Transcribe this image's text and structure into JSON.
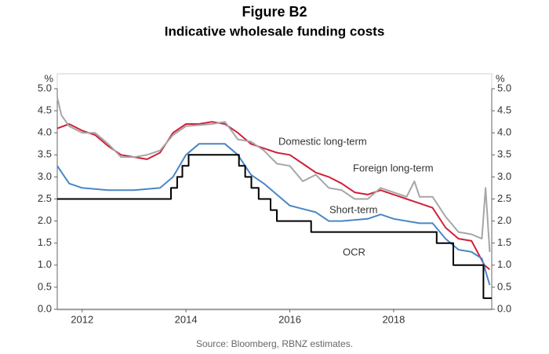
{
  "chart_data": {
    "type": "line",
    "title": "Figure B2",
    "subtitle": "Indicative wholesale funding costs",
    "source": "Source: Bloomberg, RBNZ estimates.",
    "y_label": "%",
    "y2_label": "%",
    "xlim": [
      2011.52,
      2019.89
    ],
    "xticks": [
      2012,
      2014,
      2016,
      2018
    ],
    "ylim": [
      0,
      5
    ],
    "y2lim": [
      0,
      5
    ],
    "yticks": [
      {
        "value": 0,
        "label": "0.0"
      },
      0.5,
      {
        "value": 1,
        "label": "1.0"
      },
      1.5,
      {
        "value": 2,
        "label": "2.0"
      },
      2.5,
      {
        "value": 3,
        "label": "3.0"
      },
      3.5,
      {
        "value": 4,
        "label": "4.0"
      },
      4.5,
      {
        "value": 5,
        "label": "5.0"
      }
    ],
    "y2ticks": [
      {
        "value": 0,
        "label": "0.0"
      },
      0.5,
      {
        "value": 1,
        "label": "1.0"
      },
      1.5,
      {
        "value": 2,
        "label": "2.0"
      },
      2.5,
      {
        "value": 3,
        "label": "3.0"
      },
      3.5,
      {
        "value": 4,
        "label": "4.0"
      },
      4.5,
      {
        "value": 5,
        "label": "5.0"
      }
    ],
    "series": [
      {
        "name": "Domestic long-term",
        "color": "#d0203a",
        "x": [
          2011.52,
          2011.75,
          2012,
          2012.25,
          2012.5,
          2012.75,
          2013,
          2013.25,
          2013.5,
          2013.75,
          2014,
          2014.25,
          2014.5,
          2014.75,
          2015,
          2015.25,
          2015.5,
          2015.75,
          2016,
          2016.25,
          2016.5,
          2016.75,
          2017,
          2017.25,
          2017.5,
          2017.75,
          2018,
          2018.25,
          2018.5,
          2018.75,
          2019,
          2019.25,
          2019.5,
          2019.75,
          2019.85
        ],
        "values": [
          4.1,
          4.2,
          4.05,
          3.95,
          3.7,
          3.5,
          3.45,
          3.4,
          3.55,
          4.0,
          4.2,
          4.2,
          4.25,
          4.2,
          4.0,
          3.75,
          3.65,
          3.55,
          3.5,
          3.3,
          3.1,
          3.0,
          2.85,
          2.65,
          2.6,
          2.7,
          2.6,
          2.5,
          2.4,
          2.3,
          1.85,
          1.6,
          1.55,
          1.0,
          0.9
        ]
      },
      {
        "name": "Foreign long-term",
        "color": "#a6a6a6",
        "x": [
          2011.52,
          2011.6,
          2011.75,
          2012,
          2012.25,
          2012.5,
          2012.75,
          2013,
          2013.25,
          2013.5,
          2013.75,
          2014,
          2014.5,
          2014.75,
          2015,
          2015.25,
          2015.5,
          2015.75,
          2016,
          2016.25,
          2016.5,
          2016.75,
          2017,
          2017.25,
          2017.5,
          2017.75,
          2018,
          2018.25,
          2018.4,
          2018.5,
          2018.75,
          2019,
          2019.25,
          2019.5,
          2019.7,
          2019.77,
          2019.85
        ],
        "values": [
          4.8,
          4.4,
          4.15,
          4.0,
          4.0,
          3.75,
          3.45,
          3.45,
          3.5,
          3.6,
          3.95,
          4.15,
          4.2,
          4.25,
          3.85,
          3.8,
          3.6,
          3.3,
          3.25,
          2.9,
          3.05,
          2.75,
          2.7,
          2.5,
          2.5,
          2.75,
          2.65,
          2.55,
          2.9,
          2.55,
          2.55,
          2.1,
          1.75,
          1.7,
          1.6,
          2.75,
          1.3
        ]
      },
      {
        "name": "Short-term",
        "color": "#4a86c5",
        "x": [
          2011.52,
          2011.75,
          2012,
          2012.5,
          2013,
          2013.5,
          2013.75,
          2014,
          2014.25,
          2014.75,
          2015,
          2015.25,
          2015.5,
          2015.75,
          2016,
          2016.5,
          2016.75,
          2017,
          2017.5,
          2017.75,
          2018,
          2018.5,
          2018.75,
          2019,
          2019.25,
          2019.5,
          2019.7,
          2019.85
        ],
        "values": [
          3.25,
          2.85,
          2.75,
          2.7,
          2.7,
          2.75,
          3.0,
          3.5,
          3.75,
          3.75,
          3.5,
          3.05,
          2.85,
          2.6,
          2.35,
          2.2,
          2.0,
          2.0,
          2.05,
          2.15,
          2.05,
          1.95,
          1.95,
          1.6,
          1.35,
          1.3,
          1.15,
          0.55
        ]
      },
      {
        "name": "OCR",
        "color": "#000000",
        "x": [
          2011.52,
          2013.71,
          2013.71,
          2013.83,
          2013.83,
          2013.93,
          2013.93,
          2014.05,
          2014.05,
          2015.02,
          2015.02,
          2015.14,
          2015.14,
          2015.26,
          2015.26,
          2015.4,
          2015.4,
          2015.63,
          2015.63,
          2015.75,
          2015.75,
          2016.41,
          2016.41,
          2018.83,
          2018.83,
          2019.15,
          2019.15,
          2019.73,
          2019.73,
          2019.89
        ],
        "values": [
          2.5,
          2.5,
          2.75,
          2.75,
          3.0,
          3.0,
          3.25,
          3.25,
          3.5,
          3.5,
          3.25,
          3.25,
          3.0,
          3.0,
          2.75,
          2.75,
          2.5,
          2.5,
          2.25,
          2.25,
          2.0,
          2.0,
          1.75,
          1.75,
          1.5,
          1.5,
          1.0,
          1.0,
          0.25,
          0.25
        ]
      }
    ]
  }
}
